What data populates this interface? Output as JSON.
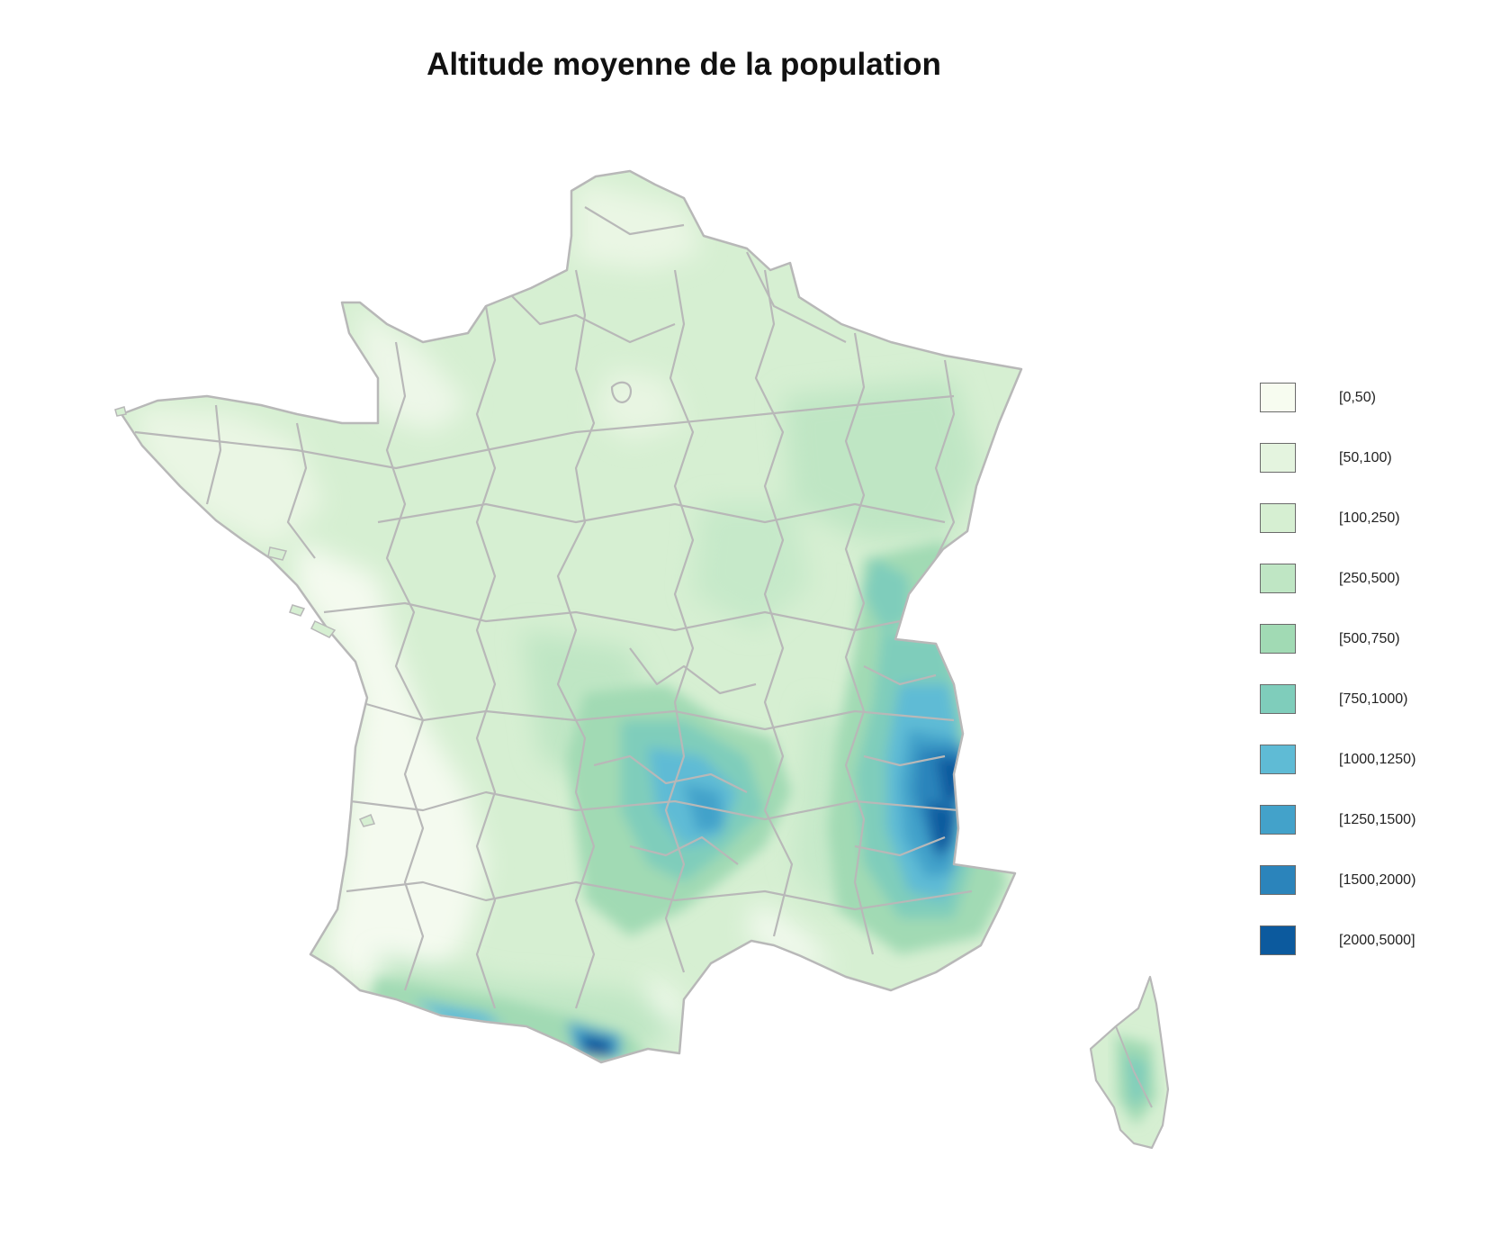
{
  "title": "Altitude moyenne de la population",
  "legend": [
    {
      "label": "[0,50)",
      "color": "#f7fcf0"
    },
    {
      "label": "[50,100)",
      "color": "#e4f4df"
    },
    {
      "label": "[100,250)",
      "color": "#d6efd2"
    },
    {
      "label": "[250,500)",
      "color": "#bfe6c4"
    },
    {
      "label": "[500,750)",
      "color": "#a1dab4"
    },
    {
      "label": "[750,1000)",
      "color": "#7fcdbb"
    },
    {
      "label": "[1000,1250)",
      "color": "#5fbbd5"
    },
    {
      "label": "[1250,1500)",
      "color": "#43a2ca"
    },
    {
      "label": "[1500,2000)",
      "color": "#2b84bb"
    },
    {
      "label": "[2000,5000]",
      "color": "#0c5a9e"
    }
  ],
  "regions": {
    "mainland": "France métropolitaine",
    "corsica": "Corse"
  },
  "colors": {
    "border": "#b8b8b8",
    "background": "#ffffff"
  }
}
